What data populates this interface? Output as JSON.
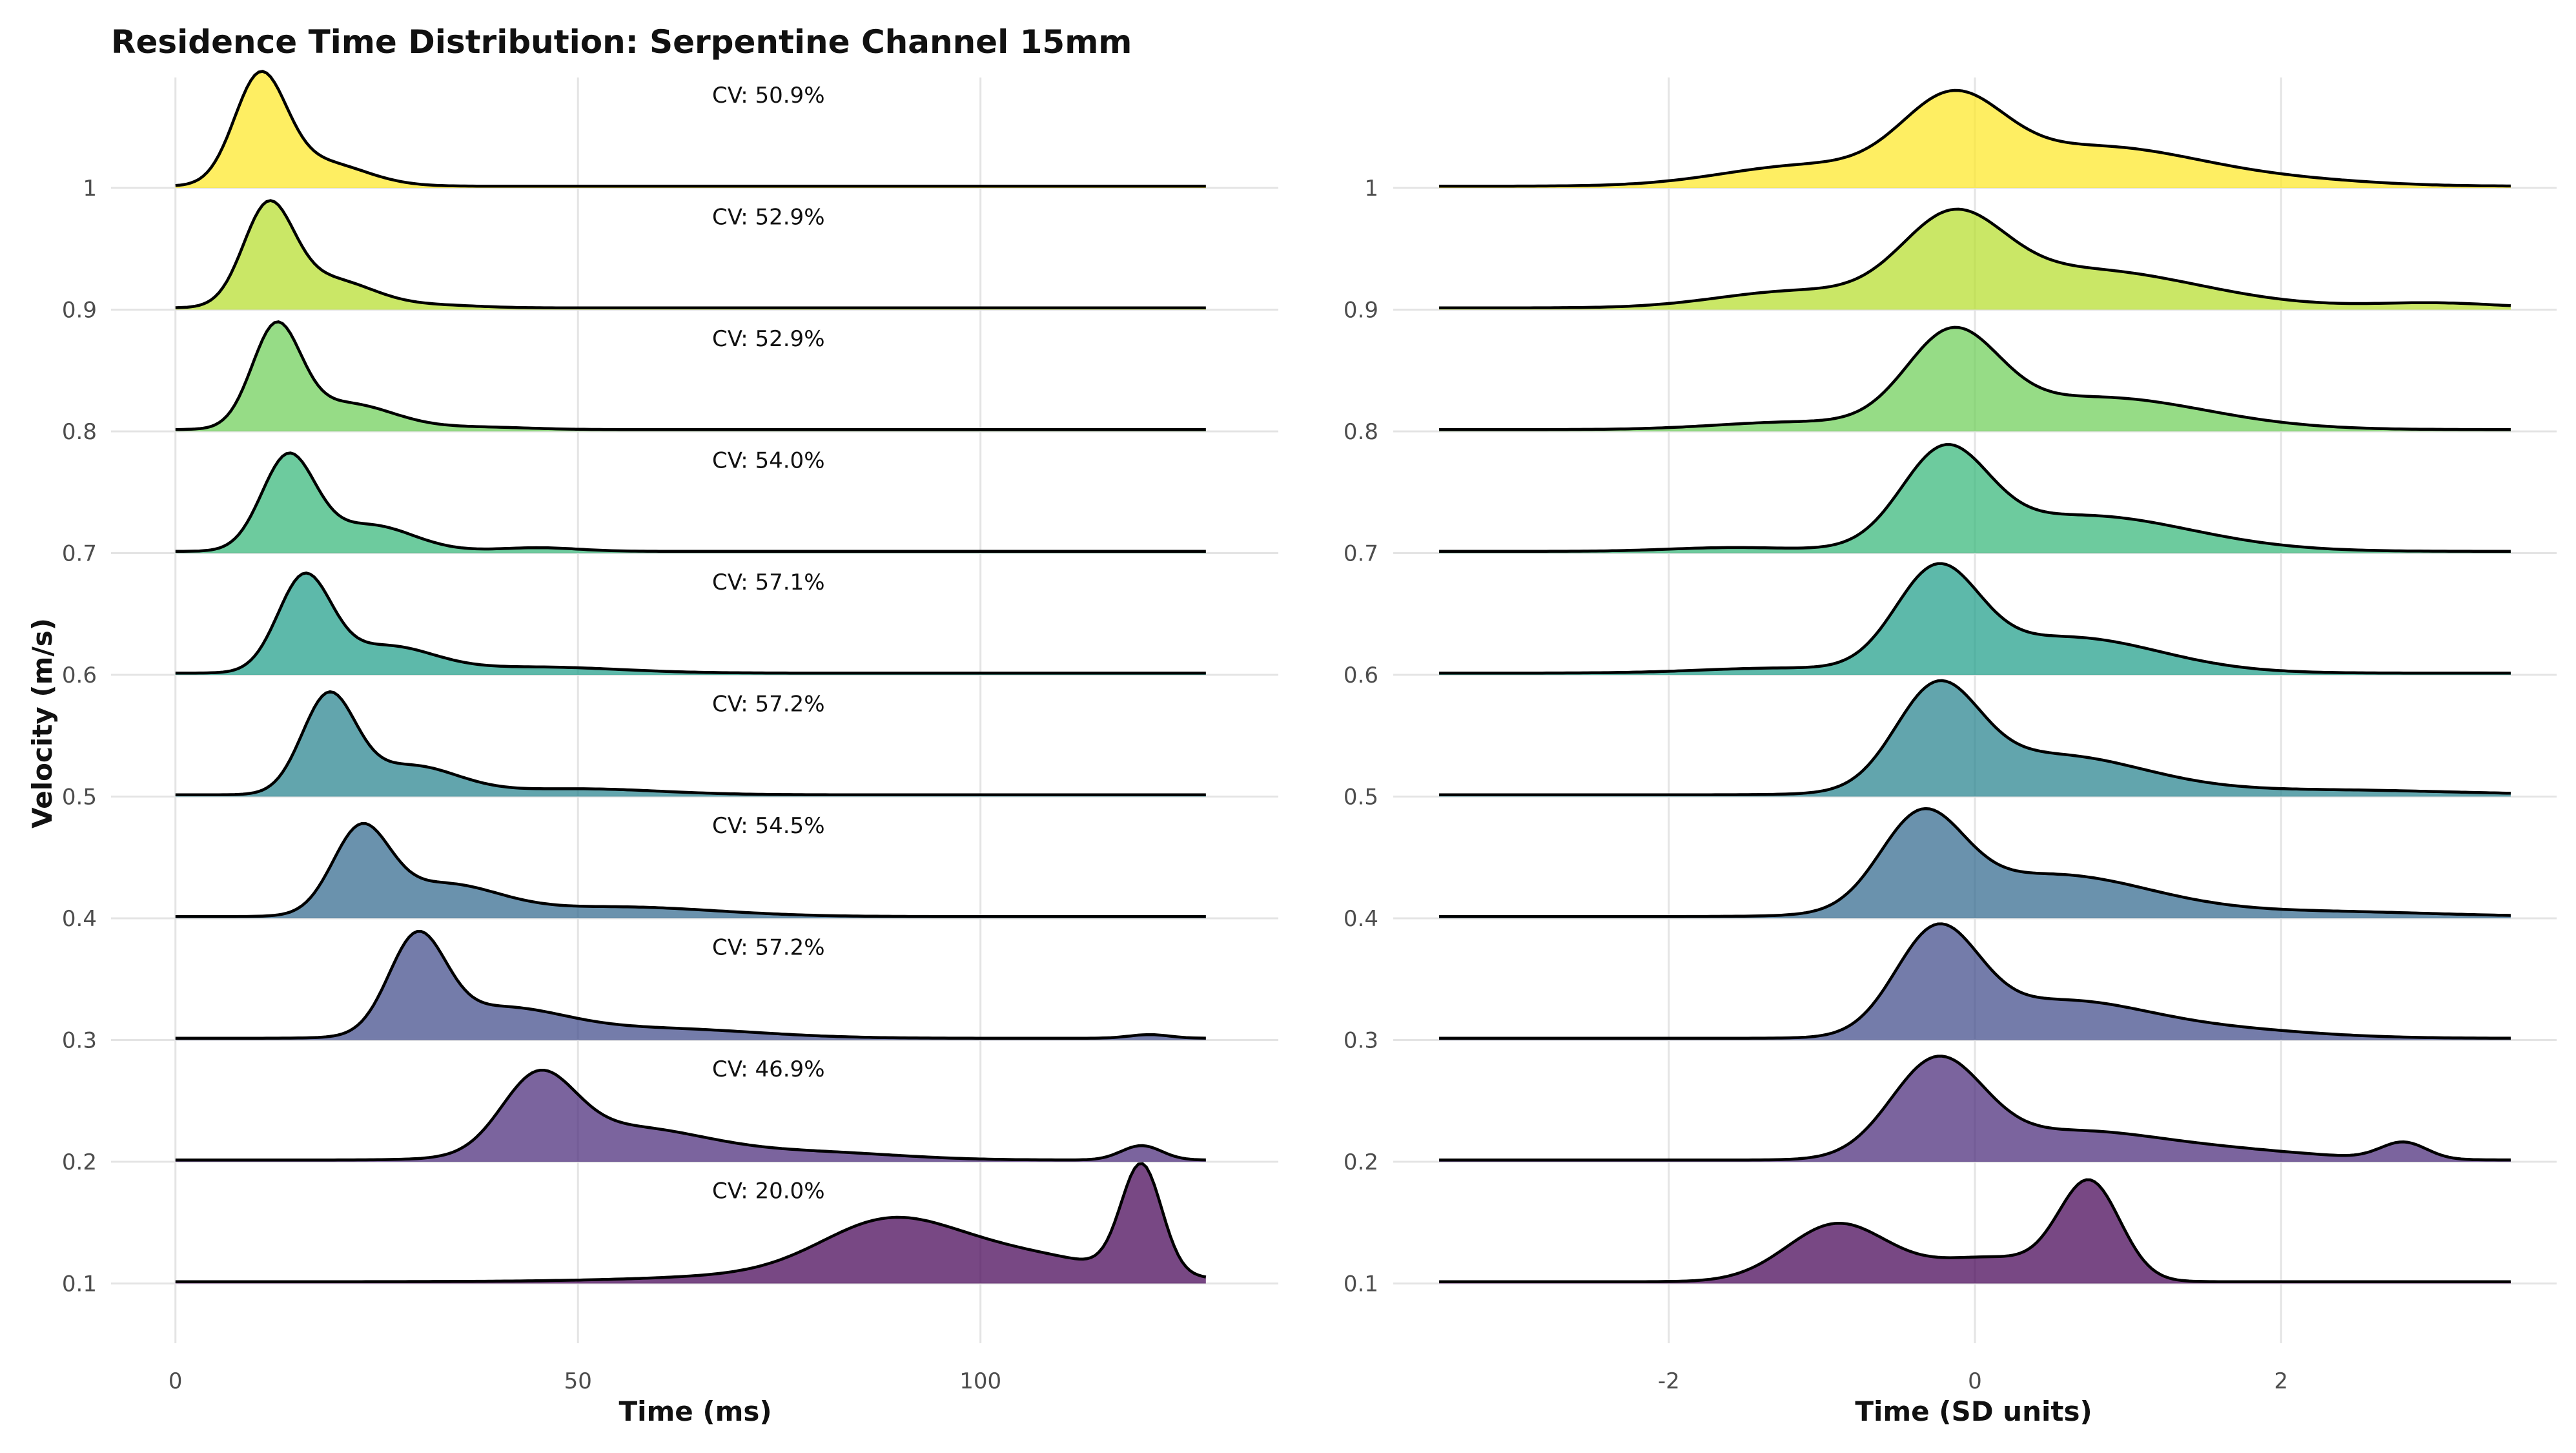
{
  "title": "Residence Time Distribution: Serpentine Channel 15mm",
  "ylabel": "Velocity (m/s)",
  "colors": {
    "0.1": "#440154",
    "0.2": "#482878",
    "0.3": "#3e4a89",
    "0.4": "#31688e",
    "0.5": "#26828e",
    "0.6": "#1f9e89",
    "0.7": "#35b779",
    "0.8": "#6ece58",
    "0.9": "#b5de2b",
    "1": "#fde725"
  },
  "chart_data": [
    {
      "type": "ridgeline",
      "panel": "left",
      "xlabel": "Time (ms)",
      "ylabel": "Velocity (m/s)",
      "xlim": [
        -8,
        137
      ],
      "x_ticks": [
        "0",
        "50",
        "100"
      ],
      "x_tick_values": [
        0,
        50,
        100
      ],
      "y_ticks": [
        "0.1",
        "0.2",
        "0.3",
        "0.4",
        "0.5",
        "0.6",
        "0.7",
        "0.8",
        "0.9",
        "1"
      ],
      "x_range": [
        0,
        128
      ],
      "series": [
        {
          "velocity": 0.1,
          "cv_label": "CV: 20.0%",
          "peaks": [
            [
              88,
              0.34,
              8
            ],
            [
              102,
              0.18,
              12
            ],
            [
              120,
              0.9,
              2.5
            ],
            [
              90,
              0.1,
              20
            ]
          ]
        },
        {
          "velocity": 0.2,
          "cv_label": "CV: 46.9%",
          "peaks": [
            [
              45,
              0.6,
              4.5
            ],
            [
              56,
              0.27,
              10
            ],
            [
              80,
              0.06,
              10
            ],
            [
              120,
              0.12,
              2.5
            ]
          ]
        },
        {
          "velocity": 0.3,
          "cv_label": "CV: 57.2%",
          "peaks": [
            [
              30,
              0.78,
              3.5
            ],
            [
              40,
              0.24,
              8
            ],
            [
              60,
              0.08,
              12
            ],
            [
              121,
              0.03,
              2.5
            ]
          ]
        },
        {
          "velocity": 0.4,
          "cv_label": "CV: 54.5%",
          "peaks": [
            [
              23,
              0.68,
              3.5
            ],
            [
              33,
              0.26,
              7
            ],
            [
              55,
              0.08,
              12
            ]
          ]
        },
        {
          "velocity": 0.5,
          "cv_label": "CV: 57.2%",
          "peaks": [
            [
              19,
              0.8,
              3.3
            ],
            [
              29,
              0.24,
              6
            ],
            [
              50,
              0.05,
              10
            ]
          ]
        },
        {
          "velocity": 0.6,
          "cv_label": "CV: 57.1%",
          "peaks": [
            [
              16,
              0.78,
              3.3
            ],
            [
              26,
              0.22,
              6
            ],
            [
              45,
              0.05,
              10
            ]
          ]
        },
        {
          "velocity": 0.7,
          "cv_label": "CV: 54.0%",
          "peaks": [
            [
              14,
              0.78,
              3.3
            ],
            [
              24,
              0.22,
              5.5
            ],
            [
              45,
              0.03,
              5
            ]
          ]
        },
        {
          "velocity": 0.8,
          "cv_label": "CV: 52.9%",
          "peaks": [
            [
              12.5,
              0.82,
              3
            ],
            [
              21,
              0.22,
              6
            ],
            [
              38,
              0.02,
              6
            ]
          ]
        },
        {
          "velocity": 0.9,
          "cv_label": "CV: 52.9%",
          "peaks": [
            [
              11.5,
              0.8,
              3.1
            ],
            [
              19,
              0.24,
              5.5
            ],
            [
              33,
              0.02,
              5
            ]
          ]
        },
        {
          "velocity": 1,
          "cv_label": "CV: 50.9%",
          "peaks": [
            [
              10.5,
              0.88,
              3.2
            ],
            [
              18,
              0.2,
              5.5
            ]
          ]
        }
      ]
    },
    {
      "type": "ridgeline",
      "panel": "right",
      "xlabel": "Time (SD units)",
      "ylabel": "",
      "xlim": [
        -3.8,
        3.8
      ],
      "x_ticks": [
        "-2",
        "0",
        "2"
      ],
      "x_tick_values": [
        -2,
        0,
        2
      ],
      "y_ticks": [
        "0.1",
        "0.2",
        "0.3",
        "0.4",
        "0.5",
        "0.6",
        "0.7",
        "0.8",
        "0.9",
        "1"
      ],
      "x_range": [
        -3.5,
        3.5
      ],
      "series": [
        {
          "velocity": 0.1,
          "peaks": [
            [
              -0.9,
              0.48,
              0.33
            ],
            [
              0.75,
              0.8,
              0.2
            ],
            [
              0.1,
              0.2,
              0.4
            ]
          ]
        },
        {
          "velocity": 0.2,
          "peaks": [
            [
              -0.25,
              0.8,
              0.3
            ],
            [
              0.6,
              0.22,
              0.55
            ],
            [
              2.8,
              0.14,
              0.15
            ],
            [
              1.6,
              0.08,
              0.6
            ]
          ]
        },
        {
          "velocity": 0.3,
          "peaks": [
            [
              -0.25,
              0.85,
              0.27
            ],
            [
              0.55,
              0.3,
              0.55
            ],
            [
              1.6,
              0.07,
              0.6
            ]
          ]
        },
        {
          "velocity": 0.4,
          "peaks": [
            [
              -0.35,
              0.75,
              0.27
            ],
            [
              0.5,
              0.35,
              0.65
            ],
            [
              2.3,
              0.04,
              0.7
            ]
          ]
        },
        {
          "velocity": 0.5,
          "peaks": [
            [
              -0.25,
              0.8,
              0.27
            ],
            [
              0.5,
              0.33,
              0.6
            ],
            [
              2.3,
              0.04,
              0.8
            ]
          ]
        },
        {
          "velocity": 0.6,
          "peaks": [
            [
              -0.25,
              0.8,
              0.27
            ],
            [
              0.6,
              0.3,
              0.6
            ],
            [
              -1.3,
              0.04,
              0.5
            ]
          ]
        },
        {
          "velocity": 0.7,
          "peaks": [
            [
              -0.2,
              0.76,
              0.28
            ],
            [
              0.7,
              0.3,
              0.7
            ],
            [
              -1.6,
              0.03,
              0.4
            ]
          ]
        },
        {
          "velocity": 0.8,
          "peaks": [
            [
              -0.15,
              0.74,
              0.3
            ],
            [
              0.8,
              0.27,
              0.7
            ],
            [
              -1.2,
              0.06,
              0.5
            ]
          ]
        },
        {
          "velocity": 0.9,
          "peaks": [
            [
              -0.15,
              0.64,
              0.33
            ],
            [
              0.7,
              0.32,
              0.75
            ],
            [
              -1.2,
              0.13,
              0.5
            ],
            [
              3.0,
              0.04,
              0.4
            ]
          ]
        },
        {
          "velocity": 1,
          "peaks": [
            [
              -0.15,
              0.63,
              0.33
            ],
            [
              0.8,
              0.33,
              0.7
            ],
            [
              -1.1,
              0.17,
              0.55
            ],
            [
              2.2,
              0.03,
              0.5
            ]
          ]
        }
      ]
    }
  ]
}
